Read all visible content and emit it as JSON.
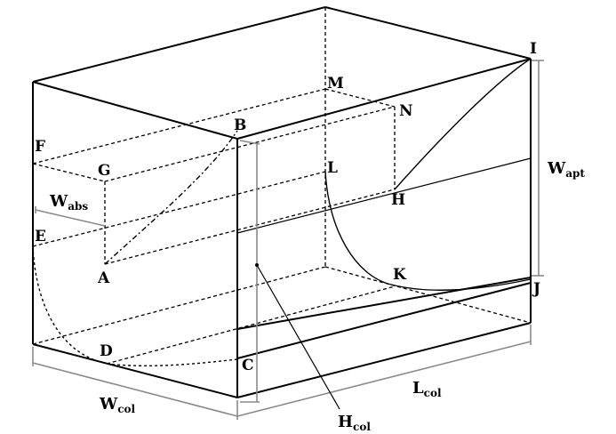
{
  "points": {
    "A": "A",
    "B": "B",
    "C": "C",
    "D": "D",
    "E": "E",
    "F": "F",
    "G": "G",
    "H": "H",
    "I": "I",
    "J": "J",
    "K": "K",
    "L": "L",
    "M": "M",
    "N": "N"
  },
  "dimensions": {
    "w_col": {
      "base": "W",
      "sub": "col"
    },
    "l_col": {
      "base": "L",
      "sub": "col"
    },
    "h_col": {
      "base": "H",
      "sub": "col"
    },
    "w_abs": {
      "base": "W",
      "sub": "abs"
    },
    "w_apt": {
      "base": "W",
      "sub": "apt"
    }
  }
}
